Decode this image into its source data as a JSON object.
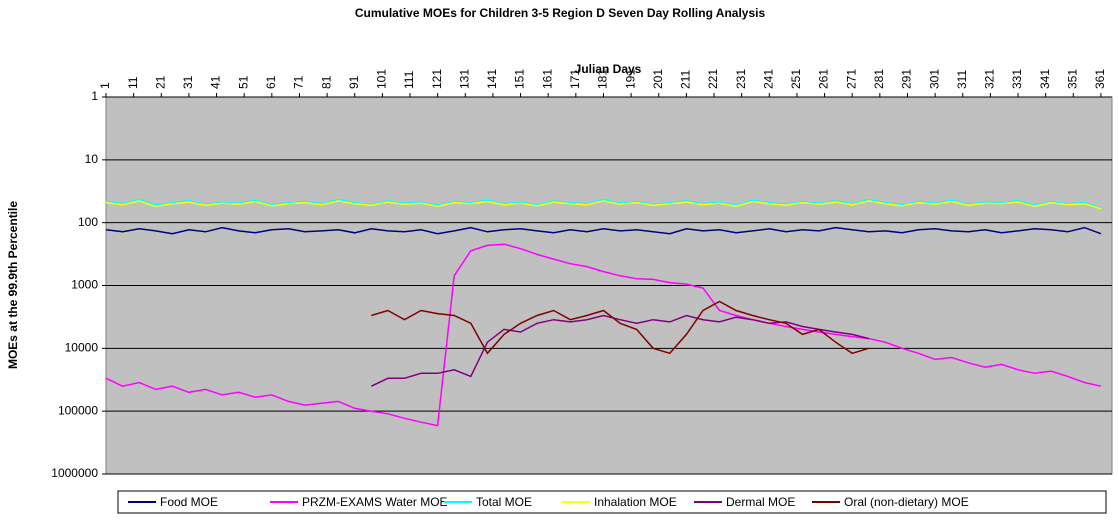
{
  "chart_data": {
    "type": "line",
    "title": "Cumulative MOEs for Children 3-5 Region D Seven Day Rolling Analysis",
    "x_label": "Julian Days",
    "y_label": "MOEs at the 99.9th Percentile",
    "x": [
      1,
      7,
      13,
      19,
      25,
      31,
      37,
      43,
      49,
      55,
      61,
      67,
      73,
      79,
      85,
      91,
      97,
      103,
      109,
      115,
      121,
      127,
      133,
      139,
      145,
      151,
      157,
      163,
      169,
      175,
      181,
      187,
      193,
      199,
      205,
      211,
      217,
      223,
      229,
      235,
      241,
      247,
      253,
      259,
      265,
      271,
      277,
      283,
      289,
      295,
      301,
      307,
      313,
      319,
      325,
      331,
      337,
      343,
      349,
      355,
      361
    ],
    "xlim": [
      1,
      365
    ],
    "xticks": [
      1,
      11,
      21,
      31,
      41,
      51,
      61,
      71,
      81,
      91,
      101,
      111,
      121,
      131,
      141,
      151,
      161,
      171,
      181,
      191,
      201,
      211,
      221,
      231,
      241,
      251,
      261,
      271,
      281,
      291,
      301,
      311,
      321,
      331,
      341,
      351,
      361
    ],
    "ylim": [
      1,
      1000000
    ],
    "yticks": [
      1,
      10,
      100,
      1000,
      10000,
      100000,
      1000000
    ],
    "log_y": true,
    "y_inverted": true,
    "grid": true,
    "plot_background": "#c0c0c0",
    "legend": "bottom",
    "series": [
      {
        "name": "Food MOE",
        "color": "#000080",
        "values": [
          130,
          140,
          125,
          135,
          150,
          130,
          140,
          120,
          135,
          145,
          130,
          125,
          140,
          135,
          130,
          145,
          125,
          135,
          140,
          130,
          150,
          135,
          120,
          140,
          130,
          125,
          135,
          145,
          130,
          140,
          125,
          135,
          130,
          140,
          150,
          125,
          135,
          130,
          145,
          135,
          125,
          140,
          130,
          135,
          120,
          130,
          140,
          135,
          145,
          130,
          125,
          135,
          140,
          130,
          145,
          135,
          125,
          130,
          140,
          120,
          150
        ]
      },
      {
        "name": "PRZM-EXAMS Water MOE",
        "color": "#ff00ff",
        "values": [
          30000,
          40000,
          35000,
          45000,
          40000,
          50000,
          45000,
          55000,
          50000,
          60000,
          55000,
          70000,
          80000,
          75000,
          70000,
          90000,
          100000,
          110000,
          130000,
          150000,
          170000,
          700,
          280,
          230,
          220,
          260,
          320,
          380,
          450,
          500,
          600,
          700,
          780,
          800,
          900,
          950,
          1100,
          2500,
          3000,
          3500,
          4000,
          4500,
          5000,
          5500,
          6000,
          6500,
          7000,
          8000,
          10000,
          12000,
          15000,
          14000,
          17000,
          20000,
          18000,
          22000,
          25000,
          23000,
          28000,
          35000,
          40000
        ]
      },
      {
        "name": "Total MOE",
        "color": "#00ffff",
        "values": [
          46,
          50,
          43,
          52,
          48,
          45,
          51,
          47,
          49,
          44,
          52,
          48,
          46,
          50,
          43,
          48,
          51,
          45,
          49,
          47,
          53,
          46,
          48,
          44,
          50,
          47,
          52,
          45,
          48,
          50,
          43,
          49,
          46,
          51,
          48,
          45,
          50,
          47,
          53,
          44,
          48,
          51,
          46,
          49,
          45,
          50,
          43,
          48,
          52,
          46,
          49,
          44,
          51,
          47,
          48,
          45,
          53,
          46,
          50,
          48,
          58
        ]
      },
      {
        "name": "Inhalation MOE",
        "color": "#ffff00",
        "values": [
          48,
          52,
          45,
          55,
          50,
          47,
          53,
          49,
          51,
          46,
          54,
          50,
          48,
          52,
          45,
          50,
          53,
          47,
          51,
          49,
          55,
          48,
          50,
          46,
          52,
          49,
          54,
          47,
          50,
          52,
          45,
          51,
          48,
          53,
          50,
          47,
          52,
          49,
          55,
          46,
          50,
          53,
          48,
          51,
          47,
          52,
          45,
          50,
          54,
          48,
          51,
          46,
          53,
          49,
          50,
          47,
          55,
          48,
          52,
          50,
          60
        ]
      },
      {
        "name": "Dermal MOE",
        "color": "#800080",
        "values": [
          null,
          null,
          null,
          null,
          null,
          null,
          null,
          null,
          null,
          null,
          null,
          null,
          null,
          null,
          null,
          null,
          40000,
          30000,
          30000,
          25000,
          25000,
          22000,
          28000,
          8000,
          5000,
          5500,
          4000,
          3500,
          3800,
          3500,
          3000,
          3500,
          4000,
          3500,
          3800,
          3000,
          3500,
          3800,
          3200,
          3500,
          4000,
          3800,
          4500,
          5000,
          5500,
          6000,
          7000,
          null,
          null,
          null,
          null,
          null,
          null,
          null,
          null,
          null,
          null,
          null,
          null,
          null,
          null
        ]
      },
      {
        "name": "Oral (non-dietary) MOE",
        "color": "#800000",
        "values": [
          null,
          null,
          null,
          null,
          null,
          null,
          null,
          null,
          null,
          null,
          null,
          null,
          null,
          null,
          null,
          null,
          3000,
          2500,
          3500,
          2500,
          2800,
          3000,
          4000,
          12000,
          6000,
          4000,
          3000,
          2500,
          3500,
          3000,
          2500,
          4000,
          5000,
          10000,
          12000,
          6000,
          2500,
          1800,
          2500,
          3000,
          3500,
          4000,
          6000,
          5000,
          8000,
          12000,
          10000,
          null,
          null,
          null,
          null,
          null,
          null,
          null,
          null,
          null,
          null,
          null,
          null,
          null,
          null
        ]
      }
    ]
  }
}
